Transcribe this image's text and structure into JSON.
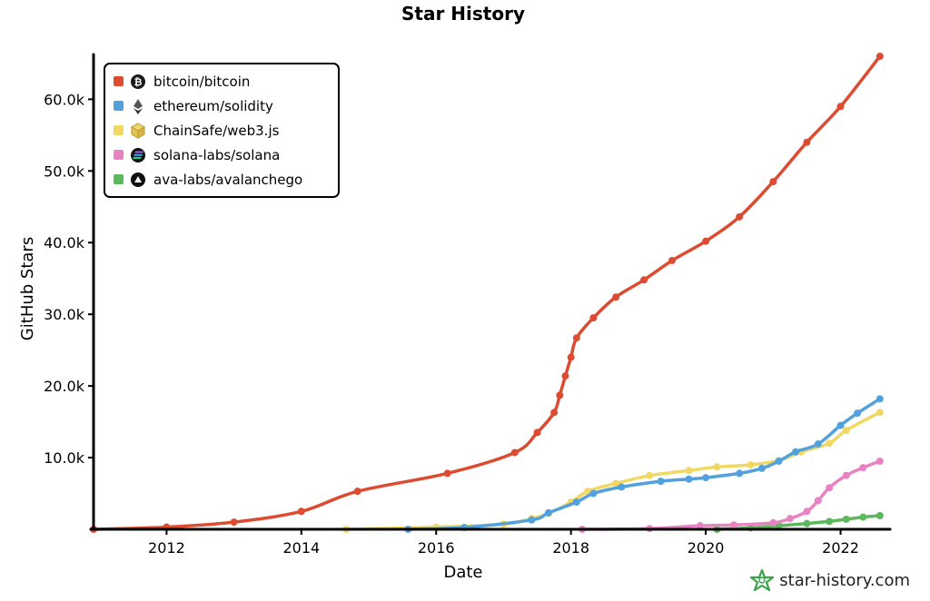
{
  "chart_data": {
    "type": "line",
    "title": "Star History",
    "xlabel": "Date",
    "ylabel": "GitHub Stars",
    "x_tick_labels": [
      "2012",
      "2014",
      "2016",
      "2018",
      "2020",
      "2022"
    ],
    "y_tick_labels": [
      "10.0k",
      "20.0k",
      "30.0k",
      "40.0k",
      "50.0k",
      "60.0k"
    ],
    "ylim": [
      0,
      66000
    ],
    "xlim": [
      "2010-12",
      "2022-09"
    ],
    "legend_position": "top-left",
    "series": [
      {
        "name": "bitcoin/bitcoin",
        "color": "#dd4b30",
        "icon": "bitcoin-logo-icon",
        "points": [
          [
            "2010-12",
            0
          ],
          [
            "2012-01",
            300
          ],
          [
            "2013-01",
            1000
          ],
          [
            "2014-01",
            2500
          ],
          [
            "2014-11",
            5300
          ],
          [
            "2016-03",
            7800
          ],
          [
            "2017-03",
            10700
          ],
          [
            "2017-07",
            13500
          ],
          [
            "2017-10",
            16300
          ],
          [
            "2017-11",
            18700
          ],
          [
            "2017-12",
            21400
          ],
          [
            "2018-01",
            24000
          ],
          [
            "2018-02",
            26700
          ],
          [
            "2018-05",
            29500
          ],
          [
            "2018-09",
            32400
          ],
          [
            "2019-02",
            34800
          ],
          [
            "2019-07",
            37500
          ],
          [
            "2020-01",
            40200
          ],
          [
            "2020-07",
            43600
          ],
          [
            "2021-01",
            48500
          ],
          [
            "2021-07",
            54000
          ],
          [
            "2022-01",
            59000
          ],
          [
            "2022-08",
            66000
          ]
        ]
      },
      {
        "name": "ethereum/solidity",
        "color": "#52a1dd",
        "icon": "ethereum-diamond-icon",
        "points": [
          [
            "2015-08",
            0
          ],
          [
            "2016-06",
            250
          ],
          [
            "2017-06",
            1300
          ],
          [
            "2017-09",
            2300
          ],
          [
            "2018-02",
            3800
          ],
          [
            "2018-05",
            5000
          ],
          [
            "2018-10",
            5900
          ],
          [
            "2019-05",
            6700
          ],
          [
            "2019-10",
            7000
          ],
          [
            "2020-01",
            7200
          ],
          [
            "2020-07",
            7800
          ],
          [
            "2020-11",
            8500
          ],
          [
            "2021-02",
            9500
          ],
          [
            "2021-05",
            10800
          ],
          [
            "2021-09",
            11900
          ],
          [
            "2022-01",
            14500
          ],
          [
            "2022-04",
            16200
          ],
          [
            "2022-08",
            18200
          ]
        ]
      },
      {
        "name": "ChainSafe/web3.js",
        "color": "#f1d862",
        "icon": "web3js-cube-icon",
        "points": [
          [
            "2014-09",
            0
          ],
          [
            "2016-01",
            300
          ],
          [
            "2017-01",
            700
          ],
          [
            "2017-06",
            1500
          ],
          [
            "2017-09",
            2200
          ],
          [
            "2018-01",
            3800
          ],
          [
            "2018-04",
            5300
          ],
          [
            "2018-09",
            6400
          ],
          [
            "2019-03",
            7500
          ],
          [
            "2019-10",
            8200
          ],
          [
            "2020-03",
            8700
          ],
          [
            "2020-09",
            9000
          ],
          [
            "2021-02",
            9600
          ],
          [
            "2021-06",
            10800
          ],
          [
            "2021-11",
            12000
          ],
          [
            "2022-02",
            13800
          ],
          [
            "2022-08",
            16300
          ]
        ]
      },
      {
        "name": "solana-labs/solana",
        "color": "#e783c3",
        "icon": "solana-logo-icon",
        "points": [
          [
            "2018-03",
            0
          ],
          [
            "2019-03",
            100
          ],
          [
            "2019-12",
            500
          ],
          [
            "2020-06",
            600
          ],
          [
            "2021-01",
            900
          ],
          [
            "2021-04",
            1500
          ],
          [
            "2021-07",
            2500
          ],
          [
            "2021-09",
            4000
          ],
          [
            "2021-11",
            5800
          ],
          [
            "2022-02",
            7500
          ],
          [
            "2022-05",
            8600
          ],
          [
            "2022-08",
            9500
          ]
        ]
      },
      {
        "name": "ava-labs/avalanchego",
        "color": "#5cb85c",
        "icon": "avalanche-logo-icon",
        "points": [
          [
            "2020-03",
            0
          ],
          [
            "2020-09",
            200
          ],
          [
            "2021-02",
            500
          ],
          [
            "2021-07",
            800
          ],
          [
            "2021-11",
            1100
          ],
          [
            "2022-02",
            1400
          ],
          [
            "2022-05",
            1700
          ],
          [
            "2022-08",
            1900
          ]
        ]
      }
    ]
  },
  "branding": {
    "text": "star-history.com",
    "icon": "star-history-logo-icon"
  }
}
